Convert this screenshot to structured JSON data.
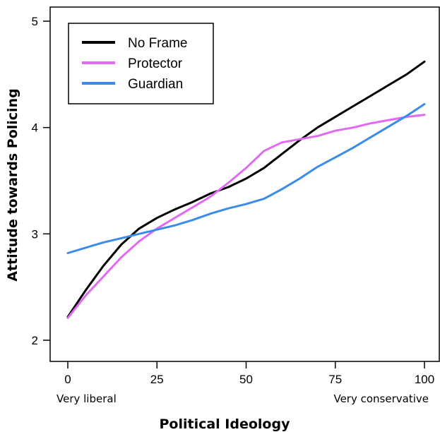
{
  "chart_data": {
    "type": "line",
    "title": "",
    "xlabel": "Political Ideology",
    "ylabel": "Attitude towards Policing",
    "x_end_labels": {
      "left": "Very liberal",
      "right": "Very conservative"
    },
    "xlim": [
      0,
      100
    ],
    "ylim": [
      1.85,
      5.1
    ],
    "xticks": [
      0,
      25,
      50,
      75,
      100
    ],
    "yticks": [
      2,
      3,
      4,
      5
    ],
    "grid": false,
    "legend": "top-left",
    "series": [
      {
        "name": "No Frame",
        "color": "#000000",
        "points": [
          [
            0,
            2.22
          ],
          [
            5,
            2.47
          ],
          [
            10,
            2.7
          ],
          [
            15,
            2.9
          ],
          [
            20,
            3.05
          ],
          [
            25,
            3.15
          ],
          [
            30,
            3.23
          ],
          [
            35,
            3.3
          ],
          [
            40,
            3.38
          ],
          [
            45,
            3.44
          ],
          [
            50,
            3.52
          ],
          [
            55,
            3.62
          ],
          [
            60,
            3.75
          ],
          [
            65,
            3.88
          ],
          [
            70,
            4.0
          ],
          [
            75,
            4.1
          ],
          [
            80,
            4.2
          ],
          [
            85,
            4.3
          ],
          [
            90,
            4.4
          ],
          [
            95,
            4.5
          ],
          [
            100,
            4.62
          ]
        ]
      },
      {
        "name": "Protector",
        "color": "#e16af2",
        "points": [
          [
            0,
            2.21
          ],
          [
            5,
            2.42
          ],
          [
            10,
            2.6
          ],
          [
            15,
            2.78
          ],
          [
            20,
            2.93
          ],
          [
            25,
            3.05
          ],
          [
            30,
            3.15
          ],
          [
            35,
            3.25
          ],
          [
            40,
            3.35
          ],
          [
            45,
            3.48
          ],
          [
            50,
            3.62
          ],
          [
            55,
            3.78
          ],
          [
            60,
            3.86
          ],
          [
            65,
            3.89
          ],
          [
            70,
            3.92
          ],
          [
            75,
            3.97
          ],
          [
            80,
            4.0
          ],
          [
            85,
            4.04
          ],
          [
            90,
            4.07
          ],
          [
            95,
            4.1
          ],
          [
            100,
            4.12
          ]
        ]
      },
      {
        "name": "Guardian",
        "color": "#3b8be8",
        "points": [
          [
            0,
            2.82
          ],
          [
            5,
            2.87
          ],
          [
            10,
            2.92
          ],
          [
            15,
            2.96
          ],
          [
            20,
            3.0
          ],
          [
            25,
            3.04
          ],
          [
            30,
            3.08
          ],
          [
            35,
            3.13
          ],
          [
            40,
            3.19
          ],
          [
            45,
            3.24
          ],
          [
            50,
            3.28
          ],
          [
            55,
            3.33
          ],
          [
            60,
            3.42
          ],
          [
            65,
            3.52
          ],
          [
            70,
            3.63
          ],
          [
            75,
            3.72
          ],
          [
            80,
            3.81
          ],
          [
            85,
            3.91
          ],
          [
            90,
            4.01
          ],
          [
            95,
            4.11
          ],
          [
            100,
            4.22
          ]
        ]
      }
    ]
  }
}
